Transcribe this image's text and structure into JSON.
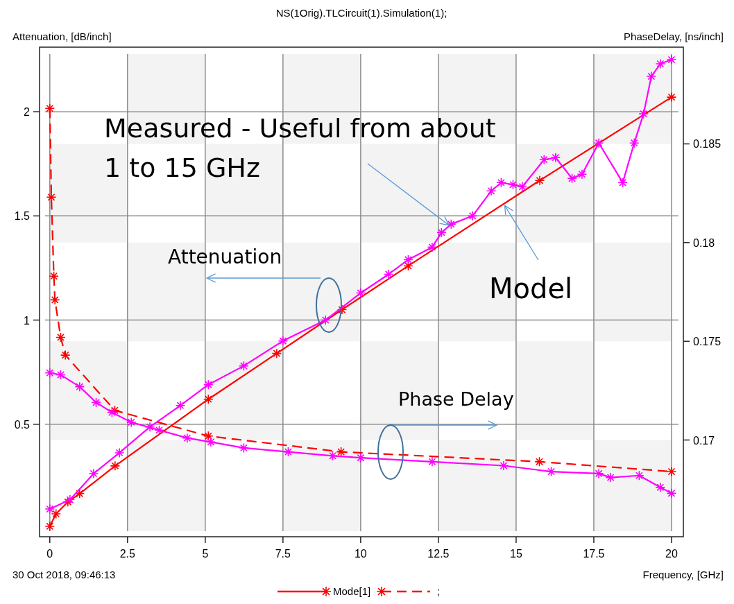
{
  "chart_data": {
    "type": "line",
    "title": "NS(1Orig).TLCircuit(1).Simulation(1);",
    "xlabel": "Frequency, [GHz]",
    "ylabel": "Attenuation, [dB/inch]",
    "y2label": "PhaseDelay, [ns/inch]",
    "xlim": [
      -0.33,
      20.38
    ],
    "xticks": [
      0,
      2.5,
      5,
      7.5,
      10,
      12.5,
      15,
      17.5,
      20
    ],
    "ylim": [
      -0.04,
      2.31
    ],
    "yticks": [
      0.5,
      1,
      1.5,
      2
    ],
    "y2lim": [
      0.1651,
      0.1899
    ],
    "y2ticks": [
      0.17,
      0.175,
      0.18,
      0.185
    ],
    "grid": true,
    "legend": "bottom",
    "marker": "cross",
    "annotations": [
      {
        "text": "Measured - Useful from about 1 to 15 GHz",
        "x": 12.91,
        "y": 1.465
      },
      "Attenuation",
      {
        "text": "Model",
        "x": 14.7,
        "y": 1.56
      },
      "Phase Delay",
      "30 Oct 2018, 09:46:13"
    ],
    "series": [
      {
        "name": "Mode[1]",
        "color": "#ff0000",
        "line_style": "solid",
        "x": [
          0,
          0.2,
          0.58,
          0.96,
          2.1,
          5.1,
          7.3,
          9.4,
          11.53,
          15.76,
          20
        ],
        "values": [
          0.01,
          0.07,
          0.127,
          0.167,
          0.3,
          0.62,
          0.84,
          1.05,
          1.26,
          1.67,
          2.07
        ]
      },
      {
        "name": ";",
        "color": "#ff0000",
        "line_style": "dashed",
        "axis": "y2",
        "x": [
          0,
          0.05,
          0.13,
          0.165,
          0.35,
          0.5,
          2.09,
          5.1,
          9.37,
          15.75,
          20
        ],
        "values": [
          0.1868,
          0.1823,
          0.1783,
          0.1771,
          0.1752,
          0.1743,
          0.1715,
          0.1702,
          0.1694,
          0.1689,
          0.1684
        ]
      },
      {
        "color": "#ff00ff",
        "line_style": "solid",
        "x": [
          0,
          0.65,
          1.41,
          2.24,
          3.22,
          4.2,
          5.1,
          6.24,
          7.5,
          8.87,
          10,
          10.9,
          11.53,
          12.3,
          12.6,
          12.91,
          13.6,
          14.2,
          14.52,
          14.9,
          15.2,
          15.9,
          16.27,
          16.8,
          17.12,
          17.66,
          18.43,
          18.8,
          19.1,
          19.35,
          19.64,
          20
        ],
        "values": [
          0.093,
          0.138,
          0.263,
          0.363,
          0.487,
          0.59,
          0.69,
          0.78,
          0.9,
          1.0,
          1.13,
          1.22,
          1.29,
          1.35,
          1.42,
          1.46,
          1.5,
          1.62,
          1.66,
          1.65,
          1.64,
          1.77,
          1.78,
          1.68,
          1.7,
          1.85,
          1.66,
          1.85,
          1.99,
          2.17,
          2.23,
          2.25
        ]
      },
      {
        "color": "#ff00ff",
        "line_style": "solid",
        "axis": "y2",
        "x": [
          0,
          0.35,
          0.96,
          1.49,
          2.0,
          2.62,
          3.52,
          4.42,
          5.18,
          6.24,
          7.67,
          9.1,
          10,
          12.3,
          14.6,
          16.13,
          17.66,
          18.04,
          18.96,
          19.64,
          20
        ],
        "values": [
          0.1734,
          0.1733,
          0.1727,
          0.1719,
          0.1714,
          0.1709,
          0.1705,
          0.1701,
          0.1699,
          0.1696,
          0.1694,
          0.1692,
          0.1691,
          0.1689,
          0.1687,
          0.1684,
          0.1683,
          0.1681,
          0.1682,
          0.1676,
          0.1673
        ]
      }
    ]
  }
}
